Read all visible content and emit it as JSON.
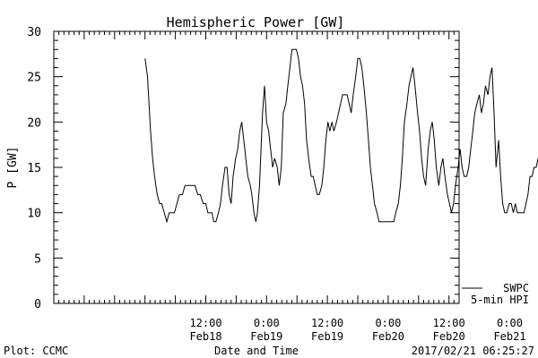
{
  "chart_data": {
    "type": "line",
    "title": "Hemispheric Power [GW]",
    "ylabel": "P [GW]",
    "xlabel": "Date and Time",
    "ylim": [
      0,
      30
    ],
    "yticks": [
      0,
      5,
      10,
      15,
      20,
      25,
      30
    ],
    "grid": false,
    "xlim_hours": [
      -18,
      62
    ],
    "xticks": [
      {
        "hour": 12,
        "label": "12:00",
        "date": "Feb18"
      },
      {
        "hour": 24,
        "label": "0:00",
        "date": "Feb19"
      },
      {
        "hour": 36,
        "label": "12:00",
        "date": "Feb19"
      },
      {
        "hour": 48,
        "label": "0:00",
        "date": "Feb20"
      },
      {
        "hour": 60,
        "label": "12:00",
        "date": "Feb20"
      },
      {
        "hour": 72,
        "label": "0:00",
        "date": "Feb21"
      }
    ],
    "series": [
      {
        "name": "SWPC",
        "x": [
          0,
          0.15,
          0.5,
          0.8,
          1.1,
          1.5,
          1.9,
          2.4,
          2.9,
          3.3,
          3.8,
          4.3,
          4.8,
          5.3,
          5.8,
          6.3,
          6.8,
          7.4,
          7.9,
          8.4,
          8.9,
          9.4,
          9.9,
          10.4,
          10.9,
          11.5,
          12,
          12.4,
          12.8,
          13.2,
          13.6,
          14,
          14.5,
          14.9,
          15.3,
          15.8,
          16.2,
          16.6,
          17,
          17.4,
          17.9,
          18.3,
          18.7,
          19.1,
          19.5,
          19.9,
          20.3,
          20.8,
          21.1,
          21.5,
          21.9,
          22.2,
          22.6,
          22.9,
          23.2,
          23.6,
          24,
          24.4,
          24.8,
          25.2,
          25.6,
          26.1,
          26.5,
          26.9,
          27.3,
          27.8,
          28.2,
          28.6,
          29,
          29.4,
          29.9,
          30.3,
          30.7,
          31.1,
          31.5,
          31.9,
          32.3,
          32.8,
          33.2,
          33.6,
          34,
          34.4,
          34.9,
          35.3,
          35.7,
          36.1,
          36.5,
          36.9,
          37.3,
          37.8,
          38.2,
          38.6,
          39,
          39.4,
          39.9,
          40.3,
          40.7,
          41.1,
          41.6,
          42,
          42.4,
          42.8,
          43.2,
          43.7,
          44.1,
          44.5,
          44.9,
          45.3,
          45.8,
          46.2,
          46.6,
          47,
          47.4,
          47.9,
          48.3,
          48.7,
          49.1,
          49.5,
          50,
          50.4,
          50.8,
          51.2,
          51.7,
          52.1,
          52.5,
          52.9,
          53.3,
          53.8,
          54.2,
          54.6,
          55,
          55.4,
          55.9,
          56.3,
          56.7,
          57.1,
          57.5,
          58,
          58.4,
          58.8,
          59.2,
          59.7,
          60.1,
          60.5,
          60.9,
          61.3,
          61.8,
          62.2,
          62.6,
          63,
          63.5,
          63.9,
          64.3,
          64.7,
          65.1,
          65.5,
          66,
          66.4,
          66.8,
          67.2,
          67.7,
          68.1,
          68.5,
          68.9,
          69.3,
          69.8,
          70.2,
          70.6,
          71,
          71.4,
          71.9,
          72.3,
          72.7,
          73.1,
          73.5,
          74,
          74.4,
          74.8,
          75.2,
          75.6,
          76,
          76.4,
          76.8,
          77.2,
          77.6,
          78,
          78.3
        ],
        "values": [
          27,
          26.5,
          25,
          22,
          19,
          16,
          14,
          12,
          11,
          11,
          10,
          9,
          10,
          10,
          10,
          11,
          12,
          12,
          13,
          13,
          13,
          13,
          13,
          12,
          12,
          11,
          11,
          10,
          10,
          10,
          9,
          9,
          10,
          11,
          13,
          15,
          15,
          12,
          11,
          14,
          16,
          17,
          19,
          20,
          18,
          16,
          14,
          13,
          12,
          10,
          9,
          10,
          13,
          17,
          21,
          24,
          20,
          19,
          17,
          15,
          16,
          15,
          13,
          15,
          21,
          22,
          24,
          26,
          28,
          28,
          28,
          27,
          25,
          24,
          22,
          18,
          16,
          14,
          14,
          13,
          12,
          12,
          13,
          15,
          18,
          20,
          19,
          20,
          19,
          20,
          21,
          22,
          23,
          23,
          23,
          22,
          21,
          23,
          25,
          27,
          27,
          26,
          24,
          21,
          18,
          15,
          13,
          11,
          10,
          9,
          9,
          9,
          9,
          9,
          9,
          9,
          9,
          10,
          11,
          13,
          16,
          20,
          22,
          24,
          25,
          26,
          24,
          21,
          19,
          16,
          14,
          13,
          17,
          19,
          20,
          18,
          15,
          13,
          15,
          16,
          14,
          12,
          11,
          10,
          11,
          13,
          15,
          17,
          15,
          14,
          14,
          15,
          17,
          19,
          21,
          22,
          23,
          21,
          22,
          24,
          23,
          25,
          26,
          21,
          15,
          18,
          14,
          11,
          10,
          10,
          11,
          11,
          10,
          11,
          10,
          10,
          10,
          10,
          11,
          12,
          14,
          14,
          15,
          15,
          16,
          15,
          14
        ]
      },
      {
        "name": "5-min HPI",
        "x": [],
        "values": []
      }
    ]
  },
  "footer": {
    "left": "Plot: CCMC",
    "right": "2017/02/21 06:25:27"
  }
}
